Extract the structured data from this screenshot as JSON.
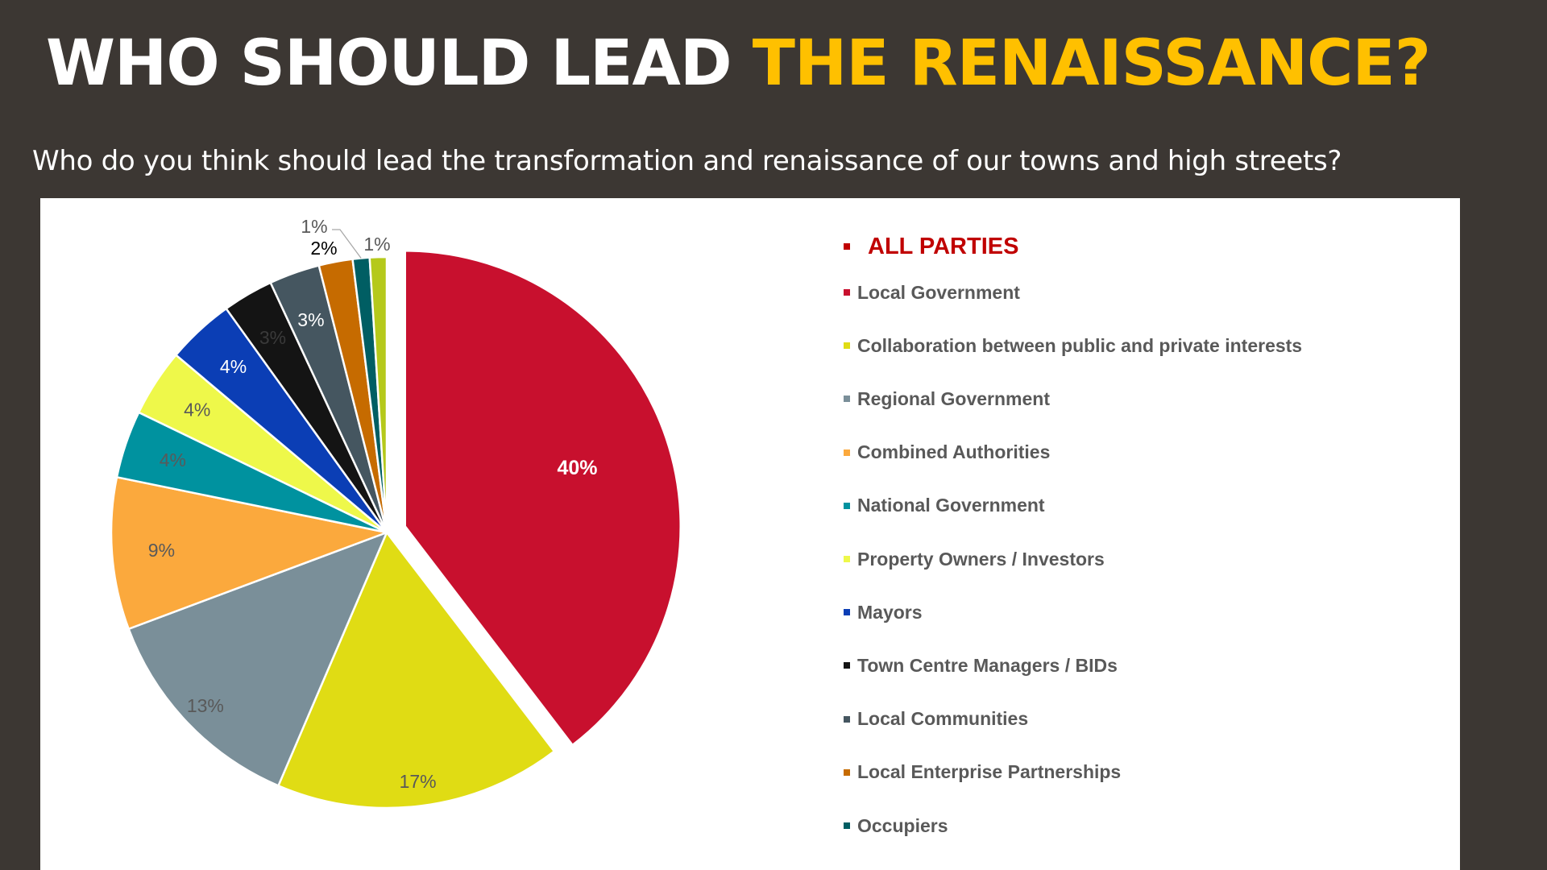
{
  "slide": {
    "title_part1": "WHO SHOULD LEAD",
    "title_part2": "THE RENAISSANCE?",
    "subtitle": "Who do you think should lead the transformation and renaissance of our towns and high streets?"
  },
  "colors": {
    "background": "#3c3733",
    "title_accent": "#ffc000",
    "legend_header": "#c00000"
  },
  "chart_data": {
    "type": "pie",
    "legend_title": "ALL PARTIES",
    "legend_title_color": "#c00000",
    "legend_position": "right",
    "exploded_slice": "Local Government",
    "slices": [
      {
        "label": "Local Government",
        "value": 40,
        "data_label": "40%",
        "color": "#c8102e"
      },
      {
        "label": "Collaboration between public and private interests",
        "value": 17,
        "data_label": "17%",
        "color": "#e0dc14"
      },
      {
        "label": "Regional Government",
        "value": 13,
        "data_label": "13%",
        "color": "#7a8f99"
      },
      {
        "label": "Combined Authorities",
        "value": 9,
        "data_label": "9%",
        "color": "#fba93d"
      },
      {
        "label": "National Government",
        "value": 4,
        "data_label": "4%",
        "color": "#00929f"
      },
      {
        "label": "Property Owners / Investors",
        "value": 4,
        "data_label": "4%",
        "color": "#eef84a"
      },
      {
        "label": "Mayors",
        "value": 4,
        "data_label": "4%",
        "color": "#0b3eb5"
      },
      {
        "label": "Town Centre Managers / BIDs",
        "value": 3,
        "data_label": "3%",
        "color": "#141414"
      },
      {
        "label": "Local Communities",
        "value": 3,
        "data_label": "3%",
        "color": "#455660"
      },
      {
        "label": "Local Enterprise Partnerships",
        "value": 2,
        "data_label": "2%",
        "color": "#c66b00"
      },
      {
        "label": "Occupiers",
        "value": 1,
        "data_label": "1%",
        "color": "#005e63"
      },
      {
        "label": "",
        "value": 1,
        "data_label": "1%",
        "color": "#b5c91b"
      }
    ]
  }
}
